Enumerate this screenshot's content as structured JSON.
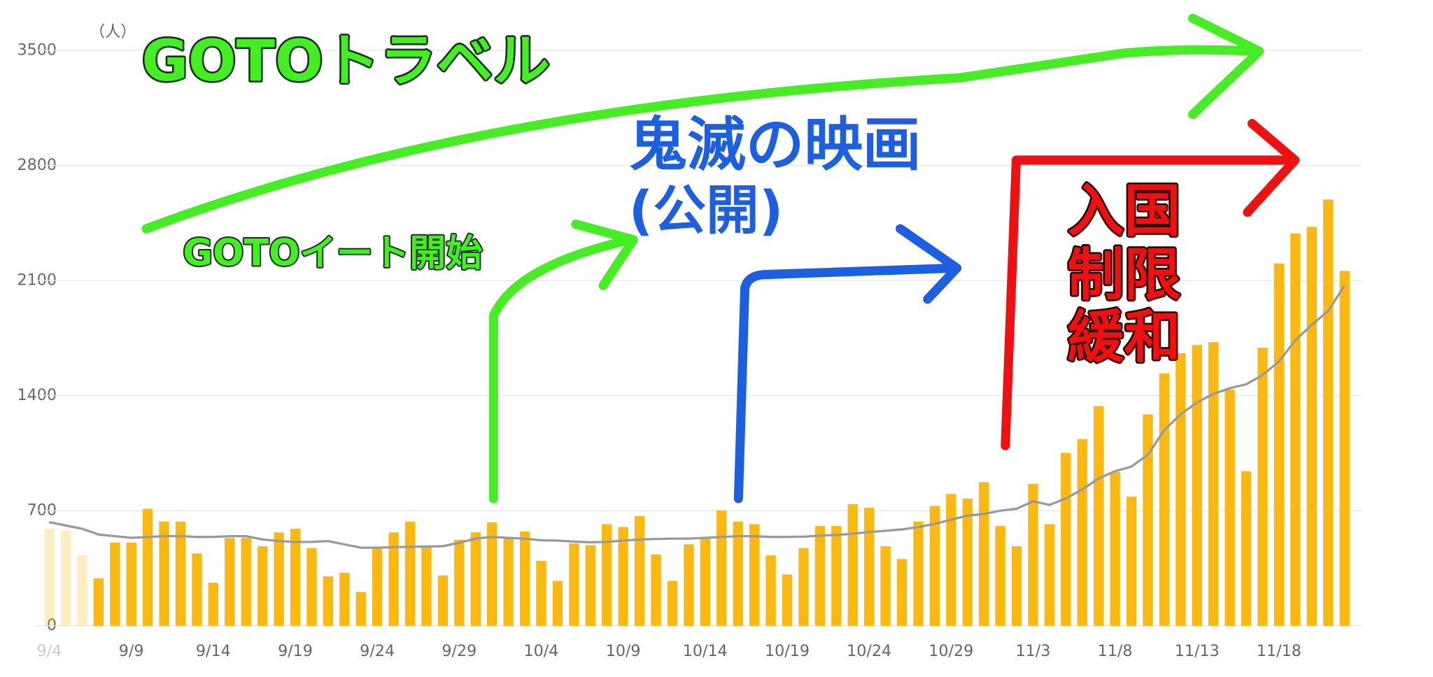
{
  "chart_data": {
    "type": "bar",
    "unit_label": "（人）",
    "categories": [
      "9/4",
      null,
      null,
      null,
      null,
      "9/9",
      null,
      null,
      null,
      null,
      "9/14",
      null,
      null,
      null,
      null,
      "9/19",
      null,
      null,
      null,
      null,
      "9/24",
      null,
      null,
      null,
      null,
      "9/29",
      null,
      null,
      null,
      null,
      "10/4",
      null,
      null,
      null,
      null,
      "10/9",
      null,
      null,
      null,
      null,
      "10/14",
      null,
      null,
      null,
      null,
      "10/19",
      null,
      null,
      null,
      null,
      "10/24",
      null,
      null,
      null,
      null,
      "10/29",
      null,
      null,
      null,
      null,
      "11/3",
      null,
      null,
      null,
      null,
      "11/8",
      null,
      null,
      null,
      null,
      "11/13",
      null,
      null,
      null,
      null,
      "11/18",
      null,
      null,
      null,
      null
    ],
    "series": [
      {
        "type": "bar",
        "color": "#f9b910",
        "values": [
          590,
          580,
          430,
          289,
          506,
          506,
          712,
          634,
          634,
          440,
          262,
          534,
          534,
          484,
          568,
          590,
          473,
          300,
          323,
          206,
          473,
          568,
          634,
          484,
          306,
          523,
          568,
          629,
          529,
          573,
          395,
          273,
          501,
          490,
          618,
          601,
          668,
          434,
          273,
          495,
          534,
          701,
          634,
          618,
          428,
          312,
          473,
          607,
          607,
          740,
          718,
          484,
          406,
          634,
          729,
          801,
          774,
          874,
          607,
          484,
          863,
          618,
          1052,
          1135,
          1336,
          935,
          785,
          1286,
          1536,
          1658,
          1708,
          1725,
          1436,
          940,
          1692,
          2204,
          2387,
          2426,
          2593,
          2159
        ]
      },
      {
        "type": "line",
        "color": "#999999",
        "values": [
          630,
          610,
          590,
          555,
          545,
          535,
          540,
          545,
          545,
          540,
          540,
          545,
          545,
          525,
          515,
          510,
          510,
          515,
          495,
          475,
          475,
          478,
          480,
          482,
          484,
          505,
          530,
          540,
          535,
          530,
          520,
          518,
          512,
          508,
          510,
          518,
          525,
          528,
          530,
          530,
          535,
          540,
          545,
          545,
          540,
          540,
          542,
          548,
          552,
          560,
          570,
          578,
          586,
          600,
          620,
          645,
          670,
          680,
          700,
          712,
          757,
          735,
          774,
          829,
          896,
          940,
          968,
          1040,
          1190,
          1286,
          1358,
          1410,
          1445,
          1469,
          1525,
          1608,
          1736,
          1831,
          1914,
          2070
        ]
      }
    ],
    "ylim": [
      0,
      3500
    ],
    "yticks": [
      0,
      700,
      1400,
      2100,
      2800,
      3500
    ],
    "grid": true,
    "annotations": [
      "GOTOトラベル",
      "GOTOイート開始",
      "鬼滅の映画",
      "(公開)",
      "入国",
      "制限",
      "緩和"
    ]
  }
}
